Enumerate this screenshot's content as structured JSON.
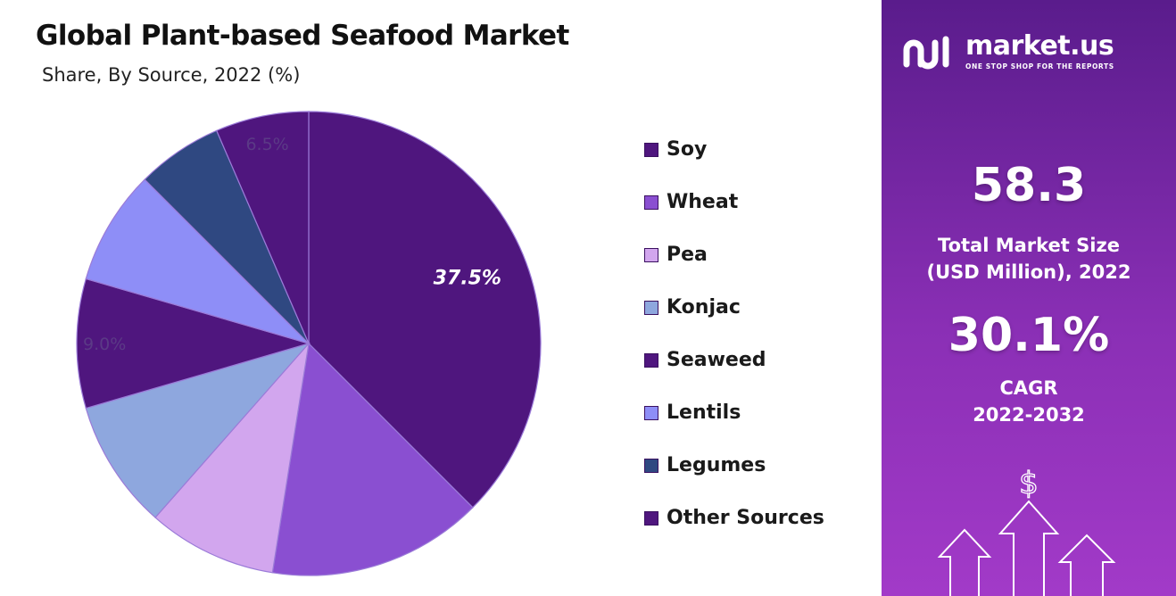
{
  "title": "Global Plant-based Seafood Market",
  "subtitle": "Share, By Source, 2022 (%)",
  "chart_data": {
    "type": "pie",
    "title": "Global Plant-based Seafood Market",
    "subtitle": "Share, By Source, 2022 (%)",
    "categories": [
      "Soy",
      "Wheat",
      "Pea",
      "Konjac",
      "Seaweed",
      "Lentils",
      "Legumes",
      "Other Sources"
    ],
    "values": [
      37.5,
      15.0,
      9.0,
      9.0,
      9.0,
      8.0,
      6.0,
      6.5
    ],
    "colors": [
      "#4f167e",
      "#8a4fd1",
      "#d2a6ee",
      "#8ea7de",
      "#4f167e",
      "#8e8ef7",
      "#2f4881",
      "#4f167e"
    ],
    "data_labels": [
      {
        "category": "Soy",
        "text": "37.5%"
      },
      {
        "category": "Seaweed",
        "text": "9.0%"
      },
      {
        "category": "Other Sources",
        "text": "6.5%"
      }
    ],
    "legend_position": "right"
  },
  "legend": [
    {
      "label": "Soy",
      "color": "#4f167e"
    },
    {
      "label": "Wheat",
      "color": "#8a4fd1"
    },
    {
      "label": "Pea",
      "color": "#d2a6ee"
    },
    {
      "label": "Konjac",
      "color": "#8ea7de"
    },
    {
      "label": "Seaweed",
      "color": "#4f167e"
    },
    {
      "label": "Lentils",
      "color": "#8e8ef7"
    },
    {
      "label": "Legumes",
      "color": "#2f4881"
    },
    {
      "label": "Other Sources",
      "color": "#4f167e"
    }
  ],
  "side": {
    "brand_name": "market.us",
    "brand_tagline": "ONE STOP SHOP FOR THE REPORTS",
    "market_size_value": "58.3",
    "market_size_label_1": "Total Market Size",
    "market_size_label_2": "(USD Million), 2022",
    "cagr_value": "30.1%",
    "cagr_label_1": "CAGR",
    "cagr_label_2": "2022-2032",
    "currency_symbol": "$",
    "logo_icon": "market-us-logo-icon",
    "deco_icon": "growth-arrows-icon"
  },
  "colors": {
    "panel_top": "#5a1c8c",
    "panel_bottom": "#a23ac8"
  }
}
